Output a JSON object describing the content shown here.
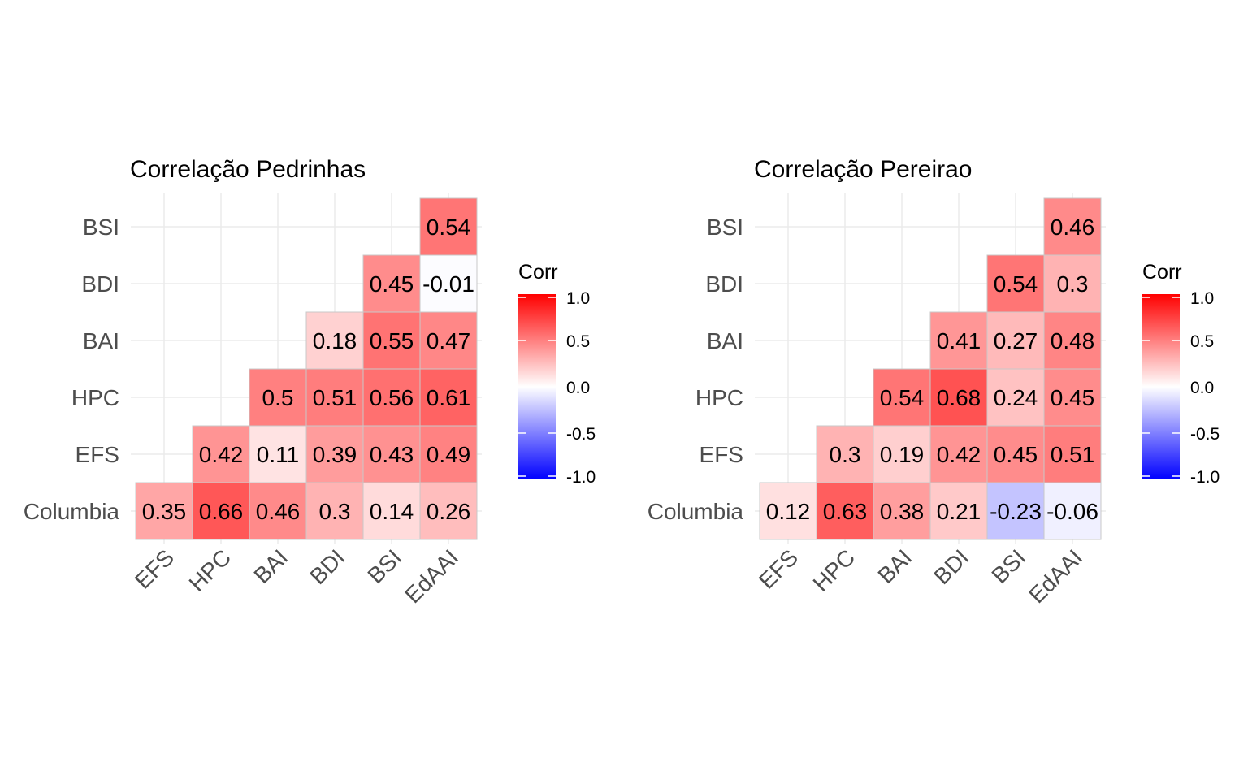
{
  "legend_title": "Corr",
  "legend_ticks": [
    "1.0",
    "0.5",
    "0.0",
    "-0.5",
    "-1.0"
  ],
  "legend_tick_values": [
    1,
    0.5,
    0,
    -0.5,
    -1
  ],
  "colors": {
    "positive": "#FF0000",
    "mid": "#FFFFFF",
    "negative": "#0000FF",
    "grid": "#EBEBEB",
    "tile_border": "#C8C8C8",
    "axis_text": "#4D4D4D",
    "text": "#000000"
  },
  "chart_data": [
    {
      "type": "heatmap",
      "title": "Correlação Pedrinhas",
      "x_categories": [
        "EFS",
        "HPC",
        "BAI",
        "BDI",
        "BSI",
        "EdAAI"
      ],
      "y_categories": [
        "Columbia",
        "EFS",
        "HPC",
        "BAI",
        "BDI",
        "BSI"
      ],
      "scale": {
        "min": -1,
        "mid": 0,
        "max": 1
      },
      "cells": [
        {
          "x": "EFS",
          "y": "Columbia",
          "value": 0.35,
          "label": "0.35"
        },
        {
          "x": "HPC",
          "y": "Columbia",
          "value": 0.66,
          "label": "0.66"
        },
        {
          "x": "BAI",
          "y": "Columbia",
          "value": 0.46,
          "label": "0.46"
        },
        {
          "x": "BDI",
          "y": "Columbia",
          "value": 0.3,
          "label": "0.3"
        },
        {
          "x": "BSI",
          "y": "Columbia",
          "value": 0.14,
          "label": "0.14"
        },
        {
          "x": "EdAAI",
          "y": "Columbia",
          "value": 0.26,
          "label": "0.26"
        },
        {
          "x": "HPC",
          "y": "EFS",
          "value": 0.42,
          "label": "0.42"
        },
        {
          "x": "BAI",
          "y": "EFS",
          "value": 0.11,
          "label": "0.11"
        },
        {
          "x": "BDI",
          "y": "EFS",
          "value": 0.39,
          "label": "0.39"
        },
        {
          "x": "BSI",
          "y": "EFS",
          "value": 0.43,
          "label": "0.43"
        },
        {
          "x": "EdAAI",
          "y": "EFS",
          "value": 0.49,
          "label": "0.49"
        },
        {
          "x": "BAI",
          "y": "HPC",
          "value": 0.5,
          "label": "0.5"
        },
        {
          "x": "BDI",
          "y": "HPC",
          "value": 0.51,
          "label": "0.51"
        },
        {
          "x": "BSI",
          "y": "HPC",
          "value": 0.56,
          "label": "0.56"
        },
        {
          "x": "EdAAI",
          "y": "HPC",
          "value": 0.61,
          "label": "0.61"
        },
        {
          "x": "BDI",
          "y": "BAI",
          "value": 0.18,
          "label": "0.18"
        },
        {
          "x": "BSI",
          "y": "BAI",
          "value": 0.55,
          "label": "0.55"
        },
        {
          "x": "EdAAI",
          "y": "BAI",
          "value": 0.47,
          "label": "0.47"
        },
        {
          "x": "BSI",
          "y": "BDI",
          "value": 0.45,
          "label": "0.45"
        },
        {
          "x": "EdAAI",
          "y": "BDI",
          "value": -0.01,
          "label": "-0.01"
        },
        {
          "x": "EdAAI",
          "y": "BSI",
          "value": 0.54,
          "label": "0.54"
        }
      ]
    },
    {
      "type": "heatmap",
      "title": "Correlação Pereirao",
      "x_categories": [
        "EFS",
        "HPC",
        "BAI",
        "BDI",
        "BSI",
        "EdAAI"
      ],
      "y_categories": [
        "Columbia",
        "EFS",
        "HPC",
        "BAI",
        "BDI",
        "BSI"
      ],
      "scale": {
        "min": -1,
        "mid": 0,
        "max": 1
      },
      "cells": [
        {
          "x": "EFS",
          "y": "Columbia",
          "value": 0.12,
          "label": "0.12"
        },
        {
          "x": "HPC",
          "y": "Columbia",
          "value": 0.63,
          "label": "0.63"
        },
        {
          "x": "BAI",
          "y": "Columbia",
          "value": 0.38,
          "label": "0.38"
        },
        {
          "x": "BDI",
          "y": "Columbia",
          "value": 0.21,
          "label": "0.21"
        },
        {
          "x": "BSI",
          "y": "Columbia",
          "value": -0.23,
          "label": "-0.23"
        },
        {
          "x": "EdAAI",
          "y": "Columbia",
          "value": -0.06,
          "label": "-0.06"
        },
        {
          "x": "HPC",
          "y": "EFS",
          "value": 0.3,
          "label": "0.3"
        },
        {
          "x": "BAI",
          "y": "EFS",
          "value": 0.19,
          "label": "0.19"
        },
        {
          "x": "BDI",
          "y": "EFS",
          "value": 0.42,
          "label": "0.42"
        },
        {
          "x": "BSI",
          "y": "EFS",
          "value": 0.45,
          "label": "0.45"
        },
        {
          "x": "EdAAI",
          "y": "EFS",
          "value": 0.51,
          "label": "0.51"
        },
        {
          "x": "BAI",
          "y": "HPC",
          "value": 0.54,
          "label": "0.54"
        },
        {
          "x": "BDI",
          "y": "HPC",
          "value": 0.68,
          "label": "0.68"
        },
        {
          "x": "BSI",
          "y": "HPC",
          "value": 0.24,
          "label": "0.24"
        },
        {
          "x": "EdAAI",
          "y": "HPC",
          "value": 0.45,
          "label": "0.45"
        },
        {
          "x": "BDI",
          "y": "BAI",
          "value": 0.41,
          "label": "0.41"
        },
        {
          "x": "BSI",
          "y": "BAI",
          "value": 0.27,
          "label": "0.27"
        },
        {
          "x": "EdAAI",
          "y": "BAI",
          "value": 0.48,
          "label": "0.48"
        },
        {
          "x": "BSI",
          "y": "BDI",
          "value": 0.54,
          "label": "0.54"
        },
        {
          "x": "EdAAI",
          "y": "BDI",
          "value": 0.3,
          "label": "0.3"
        },
        {
          "x": "EdAAI",
          "y": "BSI",
          "value": 0.46,
          "label": "0.46"
        }
      ]
    }
  ]
}
